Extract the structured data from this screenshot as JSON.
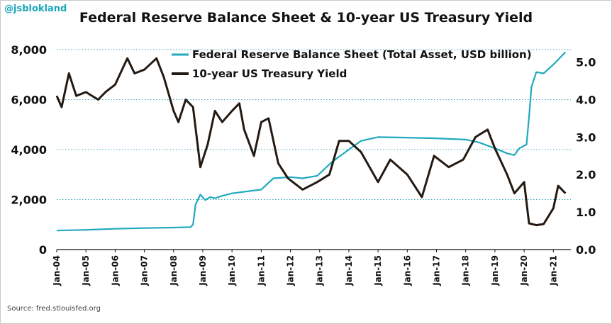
{
  "handle": "@jsblokland",
  "title": "Federal Reserve Balance Sheet & 10-year US Treasury Yield",
  "source": "Source: fred.stlouisfed.org",
  "colors": {
    "balance": "#21a9bd",
    "yield": "#241a12",
    "grid": "#3aa7b7"
  },
  "chart_data": {
    "type": "line",
    "x_ticks": [
      "Jan-04",
      "Jan-05",
      "Jan-06",
      "Jan-07",
      "Jan-08",
      "Jan-09",
      "Jan-10",
      "Jan-11",
      "Jan-12",
      "Jan-13",
      "Jan-14",
      "Jan-15",
      "Jan-16",
      "Jan-17",
      "Jan-18",
      "Jan-19",
      "Jan-20",
      "Jan-21"
    ],
    "y_left": {
      "ticks": [
        "0",
        "2,000",
        "4,000",
        "6,000",
        "8,000"
      ],
      "tick_values": [
        0,
        2000,
        4000,
        6000,
        8000
      ],
      "range": [
        0,
        8000
      ]
    },
    "y_right": {
      "ticks": [
        "0.0",
        "1.0",
        "2.0",
        "3.0",
        "4.0",
        "5.0"
      ],
      "tick_values": [
        0,
        1,
        2,
        3,
        4,
        5
      ],
      "range": [
        0,
        5.333
      ]
    },
    "grid": "horizontal dotted",
    "legend_placement": "top-center",
    "series": [
      {
        "name": "Federal Reserve Balance Sheet (Total Asset, USD billion)",
        "axis": "left",
        "points": [
          [
            "2004-01",
            760
          ],
          [
            "2005-01",
            790
          ],
          [
            "2006-01",
            830
          ],
          [
            "2007-01",
            860
          ],
          [
            "2008-01",
            880
          ],
          [
            "2008-08",
            900
          ],
          [
            "2008-09",
            1000
          ],
          [
            "2008-10",
            1800
          ],
          [
            "2008-12",
            2200
          ],
          [
            "2009-02",
            1980
          ],
          [
            "2009-04",
            2100
          ],
          [
            "2009-06",
            2050
          ],
          [
            "2009-09",
            2150
          ],
          [
            "2010-01",
            2250
          ],
          [
            "2011-01",
            2400
          ],
          [
            "2011-06",
            2850
          ],
          [
            "2012-01",
            2900
          ],
          [
            "2012-06",
            2850
          ],
          [
            "2012-12",
            2950
          ],
          [
            "2013-06",
            3500
          ],
          [
            "2014-01",
            4000
          ],
          [
            "2014-06",
            4350
          ],
          [
            "2015-01",
            4500
          ],
          [
            "2016-01",
            4480
          ],
          [
            "2017-01",
            4450
          ],
          [
            "2018-01",
            4400
          ],
          [
            "2018-06",
            4300
          ],
          [
            "2019-01",
            4050
          ],
          [
            "2019-06",
            3850
          ],
          [
            "2019-09",
            3780
          ],
          [
            "2019-11",
            4050
          ],
          [
            "2020-02",
            4200
          ],
          [
            "2020-03",
            5300
          ],
          [
            "2020-04",
            6500
          ],
          [
            "2020-06",
            7100
          ],
          [
            "2020-09",
            7050
          ],
          [
            "2021-01",
            7400
          ],
          [
            "2021-06",
            7900
          ]
        ]
      },
      {
        "name": "10-year US Treasury Yield",
        "axis": "right",
        "points": [
          [
            "2004-01",
            4.1
          ],
          [
            "2004-03",
            3.8
          ],
          [
            "2004-06",
            4.7
          ],
          [
            "2004-09",
            4.1
          ],
          [
            "2005-01",
            4.2
          ],
          [
            "2005-06",
            4.0
          ],
          [
            "2005-09",
            4.2
          ],
          [
            "2006-01",
            4.4
          ],
          [
            "2006-06",
            5.1
          ],
          [
            "2006-09",
            4.7
          ],
          [
            "2007-01",
            4.8
          ],
          [
            "2007-06",
            5.1
          ],
          [
            "2007-09",
            4.6
          ],
          [
            "2008-01",
            3.7
          ],
          [
            "2008-03",
            3.4
          ],
          [
            "2008-06",
            4.0
          ],
          [
            "2008-09",
            3.8
          ],
          [
            "2008-12",
            2.2
          ],
          [
            "2009-03",
            2.8
          ],
          [
            "2009-06",
            3.7
          ],
          [
            "2009-09",
            3.4
          ],
          [
            "2010-01",
            3.7
          ],
          [
            "2010-04",
            3.9
          ],
          [
            "2010-06",
            3.2
          ],
          [
            "2010-10",
            2.5
          ],
          [
            "2011-01",
            3.4
          ],
          [
            "2011-04",
            3.5
          ],
          [
            "2011-08",
            2.3
          ],
          [
            "2011-12",
            1.9
          ],
          [
            "2012-06",
            1.6
          ],
          [
            "2012-12",
            1.8
          ],
          [
            "2013-05",
            2.0
          ],
          [
            "2013-09",
            2.9
          ],
          [
            "2014-01",
            2.9
          ],
          [
            "2014-06",
            2.6
          ],
          [
            "2015-01",
            1.8
          ],
          [
            "2015-06",
            2.4
          ],
          [
            "2016-01",
            2.0
          ],
          [
            "2016-07",
            1.4
          ],
          [
            "2016-12",
            2.5
          ],
          [
            "2017-06",
            2.2
          ],
          [
            "2017-12",
            2.4
          ],
          [
            "2018-05",
            3.0
          ],
          [
            "2018-10",
            3.2
          ],
          [
            "2019-01",
            2.7
          ],
          [
            "2019-06",
            2.0
          ],
          [
            "2019-09",
            1.5
          ],
          [
            "2020-01",
            1.8
          ],
          [
            "2020-03",
            0.7
          ],
          [
            "2020-06",
            0.65
          ],
          [
            "2020-09",
            0.68
          ],
          [
            "2021-01",
            1.1
          ],
          [
            "2021-03",
            1.7
          ],
          [
            "2021-06",
            1.5
          ]
        ]
      }
    ]
  }
}
